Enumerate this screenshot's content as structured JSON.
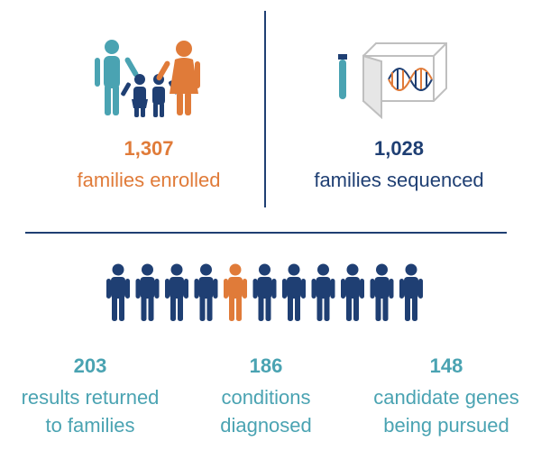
{
  "colors": {
    "orange": "#e07b39",
    "navy": "#1f3f73",
    "teal": "#4aa3b2"
  },
  "enrolled": {
    "value": "1,307",
    "label": "families enrolled"
  },
  "sequenced": {
    "value": "1,028",
    "label": "families sequenced"
  },
  "people_row": {
    "total": 11,
    "highlighted_index": 4
  },
  "results": {
    "value": "203",
    "line1": "results returned",
    "line2": "to families"
  },
  "conditions": {
    "value": "186",
    "line1": "conditions",
    "line2": "diagnosed"
  },
  "genes": {
    "value": "148",
    "line1": "candidate genes",
    "line2": "being pursued"
  }
}
